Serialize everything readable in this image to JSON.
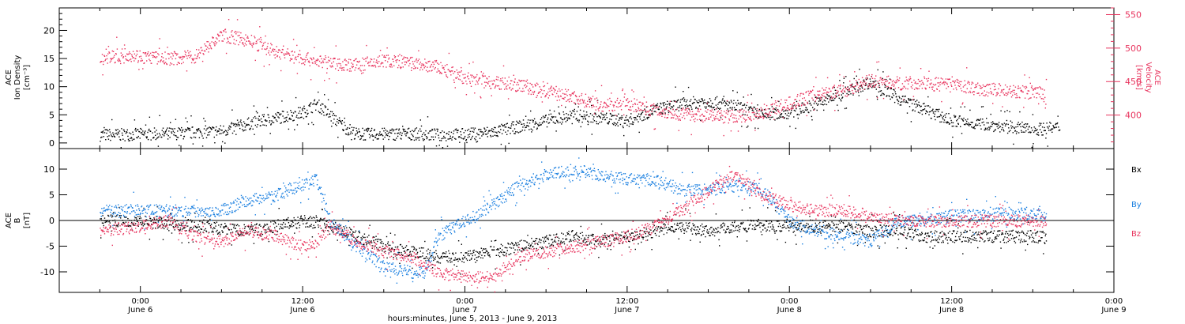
{
  "chart_data": [
    {
      "type": "scatter",
      "panel": "top",
      "ylabel_left": [
        "ACE",
        "Ion Density",
        "[cm⁻³]"
      ],
      "ylabel_right": [
        "ACE",
        "Velocity",
        "[km/s]"
      ],
      "ylim_left": [
        -1,
        24
      ],
      "ylim_right": [
        350,
        560
      ],
      "yticks_left": [
        "0",
        "5",
        "10",
        "15",
        "20"
      ],
      "yticks_right": [
        "400",
        "450",
        "500",
        "550"
      ],
      "series": [
        {
          "name": "Ion Density",
          "color": "#000000",
          "axis": "left",
          "points": [
            [
              -3,
              1.5
            ],
            [
              0,
              1.6
            ],
            [
              3,
              1.8
            ],
            [
              6,
              2.2
            ],
            [
              8,
              3.5
            ],
            [
              10,
              4.5
            ],
            [
              12,
              5.5
            ],
            [
              13,
              7
            ],
            [
              14,
              5
            ],
            [
              15,
              3
            ],
            [
              16,
              1.6
            ],
            [
              20,
              1.7
            ],
            [
              22,
              1.5
            ],
            [
              24,
              1.6
            ],
            [
              26,
              2
            ],
            [
              28,
              3
            ],
            [
              30,
              4
            ],
            [
              32,
              5
            ],
            [
              34,
              4.5
            ],
            [
              36,
              4
            ],
            [
              38,
              6
            ],
            [
              40,
              7
            ],
            [
              42,
              7.5
            ],
            [
              44,
              6.5
            ],
            [
              46,
              5
            ],
            [
              48,
              5.5
            ],
            [
              50,
              7
            ],
            [
              52,
              9
            ],
            [
              54,
              11
            ],
            [
              56,
              8
            ],
            [
              58,
              6
            ],
            [
              60,
              4
            ],
            [
              62,
              3.5
            ],
            [
              64,
              3
            ],
            [
              66,
              2.5
            ],
            [
              68,
              2.8
            ]
          ]
        },
        {
          "name": "Velocity",
          "color": "#e8345e",
          "axis": "right",
          "points": [
            [
              -3,
              485
            ],
            [
              -1,
              492
            ],
            [
              0,
              488
            ],
            [
              2,
              485
            ],
            [
              4,
              488
            ],
            [
              6,
              520
            ],
            [
              8,
              512
            ],
            [
              10,
              495
            ],
            [
              12,
              485
            ],
            [
              14,
              478
            ],
            [
              16,
              475
            ],
            [
              18,
              482
            ],
            [
              20,
              478
            ],
            [
              22,
              472
            ],
            [
              24,
              455
            ],
            [
              26,
              450
            ],
            [
              28,
              445
            ],
            [
              30,
              435
            ],
            [
              32,
              428
            ],
            [
              34,
              415
            ],
            [
              36,
              418
            ],
            [
              38,
              408
            ],
            [
              40,
              402
            ],
            [
              42,
              400
            ],
            [
              44,
              398
            ],
            [
              46,
              405
            ],
            [
              48,
              418
            ],
            [
              50,
              432
            ],
            [
              52,
              438
            ],
            [
              54,
              452
            ],
            [
              56,
              448
            ],
            [
              58,
              448
            ],
            [
              60,
              445
            ],
            [
              62,
              440
            ],
            [
              64,
              437
            ],
            [
              66,
              434
            ],
            [
              67,
              432
            ]
          ]
        }
      ]
    },
    {
      "type": "scatter",
      "panel": "bottom",
      "ylabel": [
        "ACE",
        "B",
        "[nT]"
      ],
      "ylim": [
        -14,
        14
      ],
      "yticks": [
        "10",
        "5",
        "0",
        "-5",
        "-10"
      ],
      "legend": [
        "Bx",
        "By",
        "Bz"
      ],
      "series": [
        {
          "name": "Bx",
          "color": "#000000",
          "points": [
            [
              -3,
              0
            ],
            [
              0,
              0
            ],
            [
              4,
              -1
            ],
            [
              8,
              -2
            ],
            [
              12,
              0
            ],
            [
              14,
              -1
            ],
            [
              16,
              -3
            ],
            [
              18,
              -5
            ],
            [
              20,
              -6
            ],
            [
              22,
              -7
            ],
            [
              24,
              -7
            ],
            [
              26,
              -6
            ],
            [
              28,
              -5
            ],
            [
              30,
              -4
            ],
            [
              32,
              -3
            ],
            [
              34,
              -4
            ],
            [
              36,
              -3
            ],
            [
              38,
              -2
            ],
            [
              40,
              -1
            ],
            [
              42,
              -2
            ],
            [
              44,
              -1
            ],
            [
              46,
              -1
            ],
            [
              48,
              -1
            ],
            [
              50,
              -1
            ],
            [
              52,
              -1
            ],
            [
              54,
              -2
            ],
            [
              56,
              -2
            ],
            [
              58,
              -3
            ],
            [
              60,
              -3
            ],
            [
              62,
              -3
            ],
            [
              64,
              -3
            ],
            [
              66,
              -3
            ],
            [
              67,
              -3.3
            ]
          ]
        },
        {
          "name": "By",
          "color": "#1a7fe0",
          "points": [
            [
              -3,
              2
            ],
            [
              0,
              2
            ],
            [
              2,
              2
            ],
            [
              4,
              2
            ],
            [
              6,
              2
            ],
            [
              8,
              4
            ],
            [
              10,
              5
            ],
            [
              12,
              7
            ],
            [
              13,
              8
            ],
            [
              14,
              0
            ],
            [
              16,
              -5
            ],
            [
              18,
              -9
            ],
            [
              20,
              -10
            ],
            [
              21,
              -10
            ],
            [
              22,
              -3
            ],
            [
              24,
              0
            ],
            [
              26,
              3
            ],
            [
              27,
              5
            ],
            [
              28,
              7
            ],
            [
              30,
              9
            ],
            [
              32,
              10
            ],
            [
              34,
              9
            ],
            [
              36,
              8
            ],
            [
              38,
              8
            ],
            [
              40,
              6
            ],
            [
              42,
              6
            ],
            [
              44,
              7
            ],
            [
              46,
              6
            ],
            [
              48,
              0
            ],
            [
              50,
              -2
            ],
            [
              52,
              -3
            ],
            [
              54,
              -4
            ],
            [
              56,
              0
            ],
            [
              58,
              0
            ],
            [
              60,
              1
            ],
            [
              62,
              1
            ],
            [
              64,
              1.5
            ],
            [
              66,
              1.5
            ],
            [
              67,
              1
            ]
          ]
        },
        {
          "name": "Bz",
          "color": "#e8345e",
          "points": [
            [
              -3,
              -2
            ],
            [
              0,
              -1
            ],
            [
              2,
              0
            ],
            [
              4,
              -3
            ],
            [
              6,
              -4
            ],
            [
              8,
              -2
            ],
            [
              10,
              -3
            ],
            [
              12,
              -5
            ],
            [
              13,
              -4
            ],
            [
              14,
              -1
            ],
            [
              16,
              -4
            ],
            [
              18,
              -6
            ],
            [
              20,
              -7
            ],
            [
              22,
              -10
            ],
            [
              24,
              -11
            ],
            [
              26,
              -11
            ],
            [
              27,
              -9
            ],
            [
              28,
              -7
            ],
            [
              30,
              -6
            ],
            [
              32,
              -5
            ],
            [
              34,
              -4
            ],
            [
              36,
              -3
            ],
            [
              38,
              -1
            ],
            [
              40,
              2
            ],
            [
              42,
              6
            ],
            [
              44,
              9
            ],
            [
              46,
              5
            ],
            [
              48,
              3
            ],
            [
              50,
              2
            ],
            [
              52,
              2
            ],
            [
              54,
              1
            ],
            [
              56,
              0
            ],
            [
              58,
              0
            ],
            [
              60,
              0
            ],
            [
              62,
              0
            ],
            [
              64,
              0
            ],
            [
              66,
              0
            ],
            [
              67,
              -0.2
            ]
          ]
        }
      ]
    }
  ],
  "x_axis": {
    "xlim_hours": [
      -6,
      72
    ],
    "ticks": [
      {
        "hour": 0,
        "time": "0:00",
        "day": "June 6"
      },
      {
        "hour": 12,
        "time": "12:00",
        "day": "June 6"
      },
      {
        "hour": 24,
        "time": "0:00",
        "day": "June 7"
      },
      {
        "hour": 36,
        "time": "12:00",
        "day": "June 7"
      },
      {
        "hour": 48,
        "time": "0:00",
        "day": "June 8"
      },
      {
        "hour": 60,
        "time": "12:00",
        "day": "June 8"
      },
      {
        "hour": 72,
        "time": "0:00",
        "day": "June 9"
      }
    ],
    "xlabel": "hours:minutes, June  5, 2013 - June  9, 2013"
  },
  "colors": {
    "black": "#000000",
    "pink": "#e8345e",
    "blue": "#1a7fe0"
  }
}
